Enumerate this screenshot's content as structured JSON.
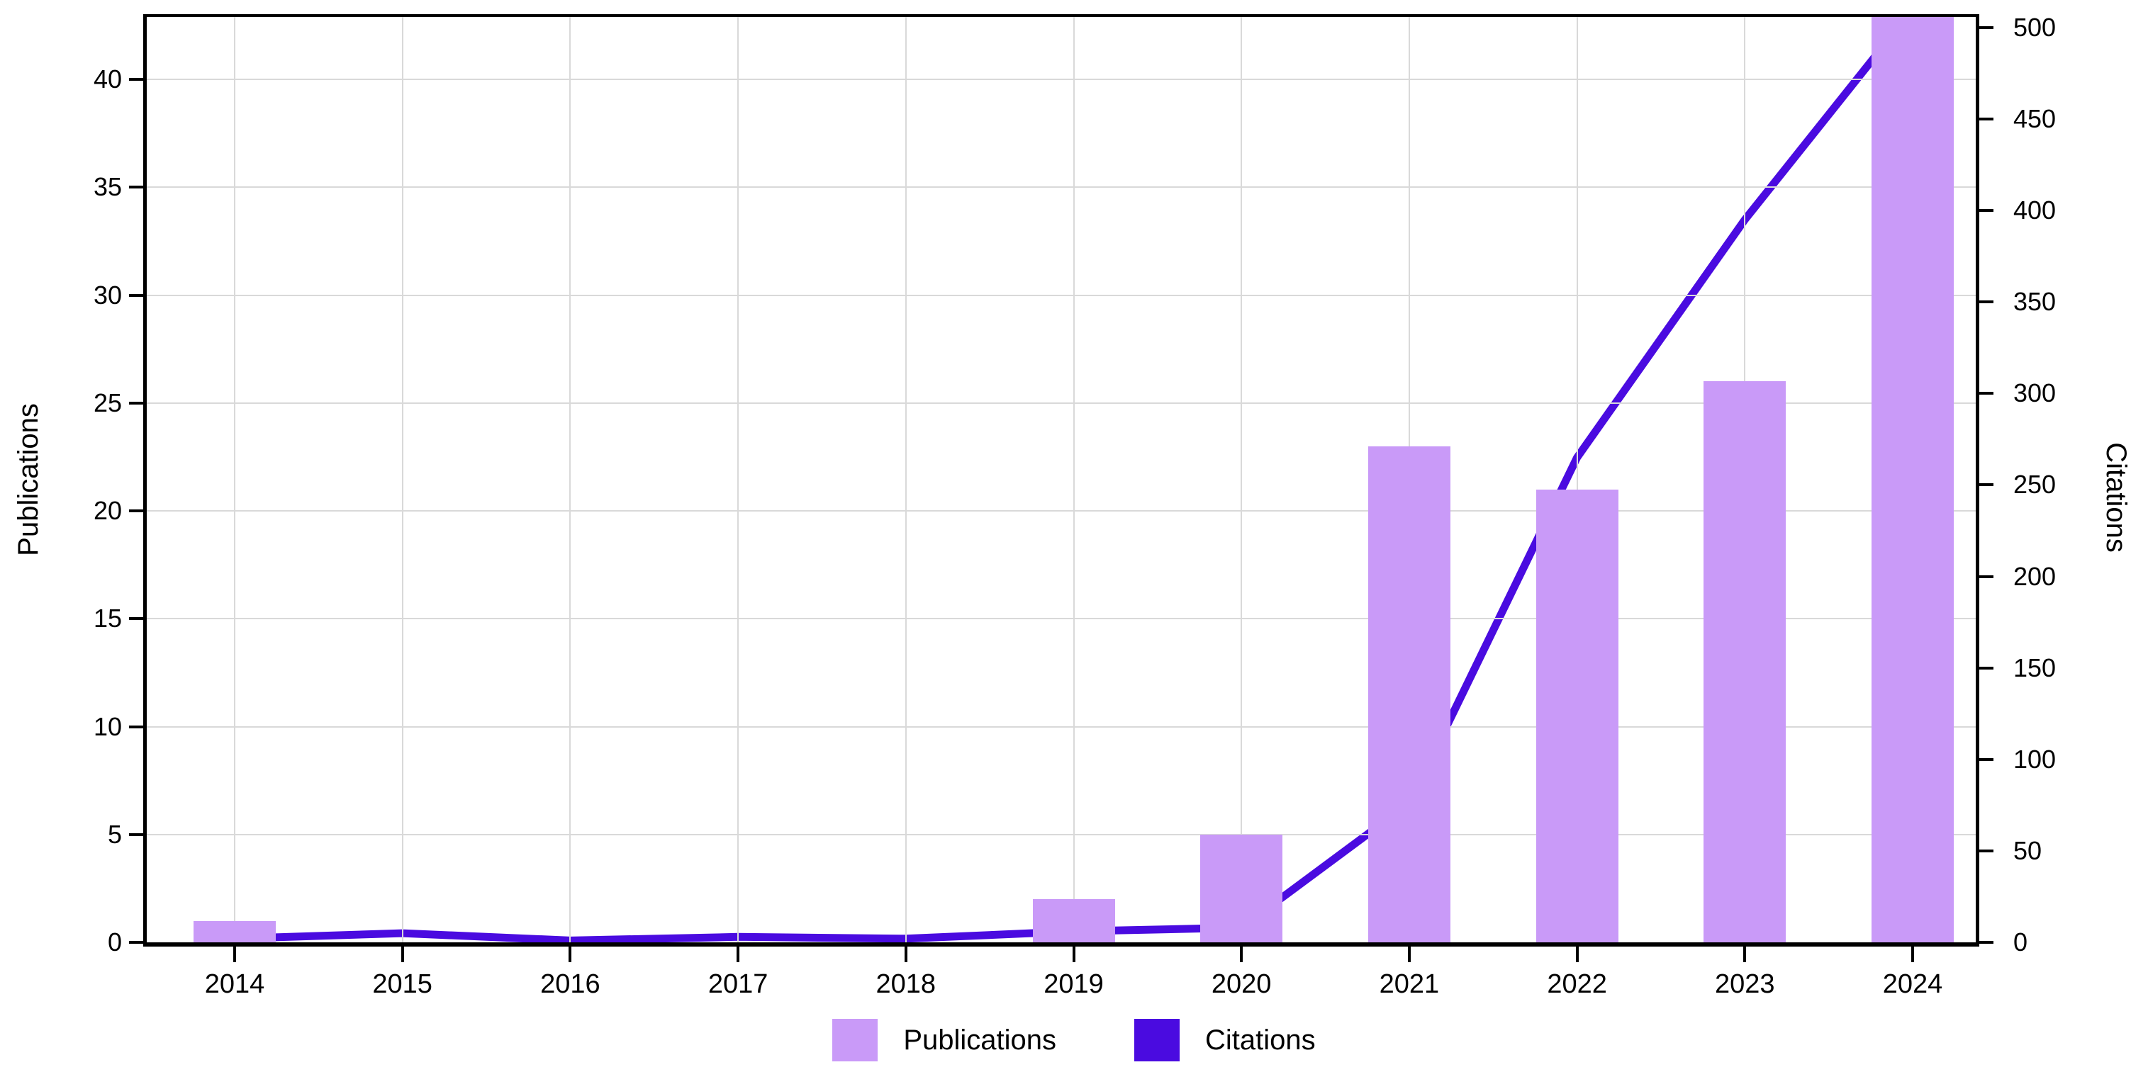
{
  "chart_data": {
    "type": "combo-bar-line",
    "categories": [
      "2014",
      "2015",
      "2016",
      "2017",
      "2018",
      "2019",
      "2020",
      "2021",
      "2022",
      "2023",
      "2024"
    ],
    "series": [
      {
        "name": "Publications",
        "type": "bar",
        "axis": "left",
        "color": "#C99AF8",
        "values": [
          1,
          0,
          0,
          0,
          0,
          2,
          5,
          23,
          21,
          26,
          43
        ]
      },
      {
        "name": "Citations",
        "type": "line",
        "axis": "right",
        "color": "#4A0BE0",
        "values": [
          2,
          5,
          1,
          3,
          2,
          6,
          8,
          76,
          265,
          395,
          510
        ]
      }
    ],
    "left_axis": {
      "label": "Publications",
      "ticks": [
        0,
        5,
        10,
        15,
        20,
        25,
        30,
        35,
        40
      ],
      "ylim": [
        0,
        42.9
      ]
    },
    "right_axis": {
      "label": "Citations",
      "ticks": [
        0,
        50,
        100,
        150,
        200,
        250,
        300,
        350,
        400,
        450,
        500
      ],
      "ylim": [
        0,
        505.8
      ]
    },
    "x_axis": {
      "tick_labels": [
        "2014",
        "2015",
        "2016",
        "2017",
        "2018",
        "2019",
        "2020",
        "2021",
        "2022",
        "2023",
        "2024"
      ]
    },
    "grid": true,
    "legend_position": "bottom",
    "notes": "2024 bar and 2024 line point are clipped at the top plot edge"
  },
  "legend": {
    "publications_label": "Publications",
    "citations_label": "Citations"
  },
  "colors": {
    "bar_fill": "#C99AF8",
    "line_stroke": "#4A0BE0",
    "gridline": "#d9d9d9",
    "axis": "#000000",
    "background": "#ffffff"
  }
}
